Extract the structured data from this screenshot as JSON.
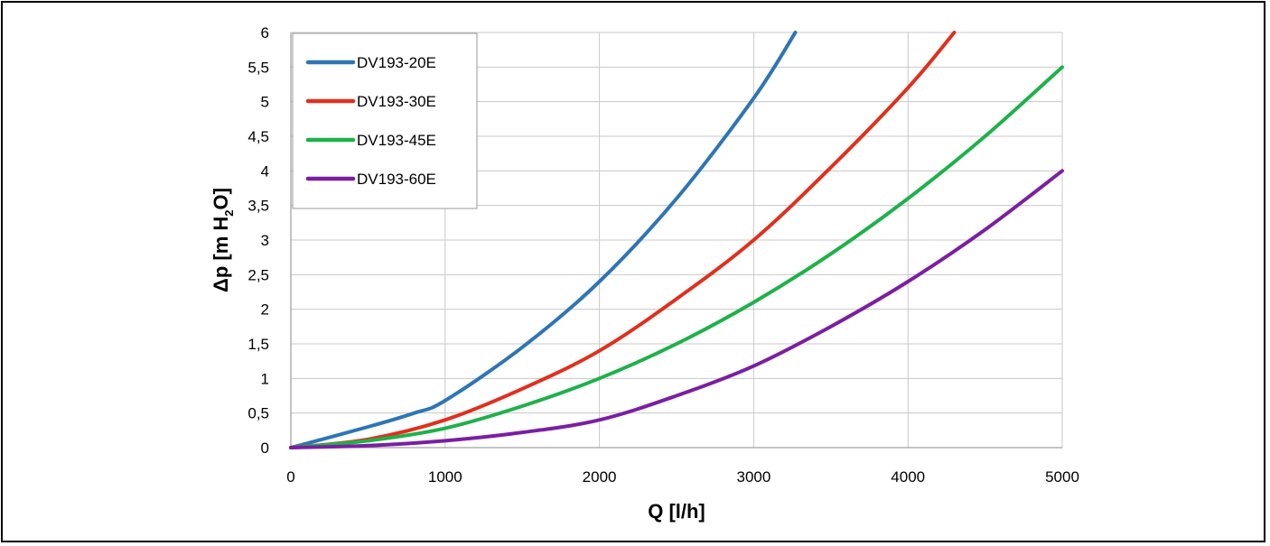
{
  "chart_data": {
    "type": "line",
    "xlabel": "Q [l/h]",
    "ylabel": {
      "prefix": "Δp [m H",
      "sub": "2",
      "suffix": "O]"
    },
    "xlim": [
      0,
      5000
    ],
    "ylim": [
      0,
      6
    ],
    "x_ticks": [
      0,
      1000,
      2000,
      3000,
      4000,
      5000
    ],
    "x_tick_labels": [
      "0",
      "1000",
      "2000",
      "3000",
      "4000",
      "5000"
    ],
    "y_ticks": [
      0,
      0.5,
      1,
      1.5,
      2,
      2.5,
      3,
      3.5,
      4,
      4.5,
      5,
      5.5,
      6
    ],
    "y_tick_labels": [
      "0",
      "0,5",
      "1",
      "1,5",
      "2",
      "2,5",
      "3",
      "3,5",
      "4",
      "4,5",
      "5",
      "5,5",
      "6"
    ],
    "grid": true,
    "legend_position": "top-left",
    "series": [
      {
        "name": "DV193-20E",
        "color": "#2e75b6",
        "x": [
          0,
          500,
          800,
          1000,
          1500,
          2000,
          2500,
          3000,
          3270
        ],
        "y": [
          0,
          0.3,
          0.5,
          0.68,
          1.45,
          2.4,
          3.6,
          5.05,
          6.0
        ]
      },
      {
        "name": "DV193-30E",
        "color": "#e0301e",
        "x": [
          0,
          500,
          1000,
          1500,
          2000,
          2500,
          3000,
          3500,
          4000,
          4300
        ],
        "y": [
          0,
          0.12,
          0.4,
          0.85,
          1.4,
          2.15,
          3.0,
          4.05,
          5.2,
          6.0
        ]
      },
      {
        "name": "DV193-45E",
        "color": "#1fb14a",
        "x": [
          0,
          500,
          1000,
          1500,
          2000,
          2500,
          3000,
          3500,
          4000,
          4500,
          5000
        ],
        "y": [
          0,
          0.1,
          0.28,
          0.6,
          1.0,
          1.5,
          2.1,
          2.8,
          3.6,
          4.5,
          5.5
        ]
      },
      {
        "name": "DV193-60E",
        "color": "#7b1fa2",
        "x": [
          0,
          500,
          1000,
          1500,
          2000,
          2500,
          3000,
          3500,
          4000,
          4500,
          5000
        ],
        "y": [
          0,
          0.03,
          0.1,
          0.22,
          0.4,
          0.75,
          1.18,
          1.75,
          2.4,
          3.15,
          4.0
        ]
      }
    ]
  }
}
